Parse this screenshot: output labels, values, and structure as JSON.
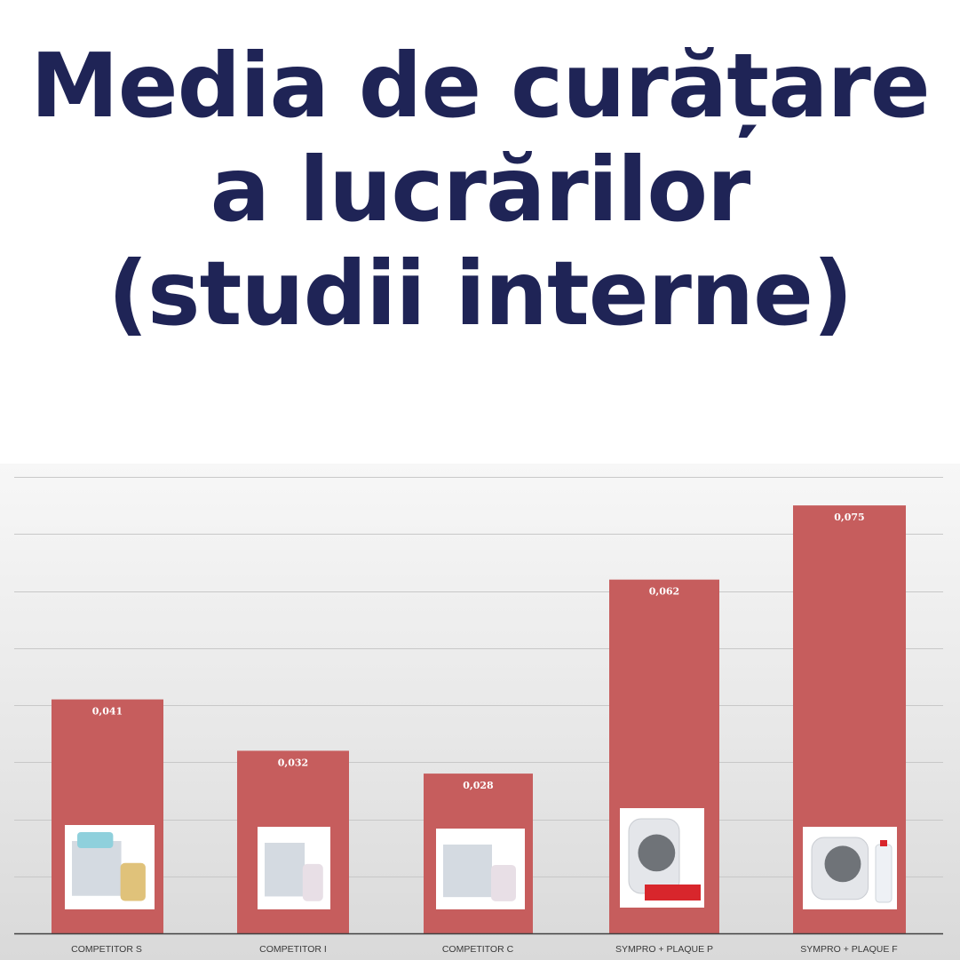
{
  "title": {
    "lines": [
      "Media de curățare",
      "a lucrărilor",
      "(studii interne)"
    ]
  },
  "chart_data": {
    "type": "bar",
    "categories": [
      "COMPETITOR S",
      "COMPETITOR I",
      "COMPETITOR C",
      "SYMPRO + PLAQUE P",
      "SYMPRO + PLAQUE F"
    ],
    "values": [
      0.041,
      0.032,
      0.028,
      0.062,
      0.075
    ],
    "data_labels": [
      "0,041",
      "0,032",
      "0,028",
      "0,062",
      "0,075"
    ],
    "title": "",
    "xlabel": "",
    "ylabel": "",
    "ylim": [
      0,
      0.08
    ],
    "grid": true,
    "gridline_step": 0.01,
    "legend": "none",
    "bar_color": "#c65d5d",
    "product_images": [
      "competitor-s-product",
      "competitor-i-product",
      "competitor-c-product",
      "sympro-plaque-p-product",
      "sympro-plaque-f-product"
    ]
  },
  "colors": {
    "title": "#1f2456",
    "bar": "#c65d5d"
  }
}
